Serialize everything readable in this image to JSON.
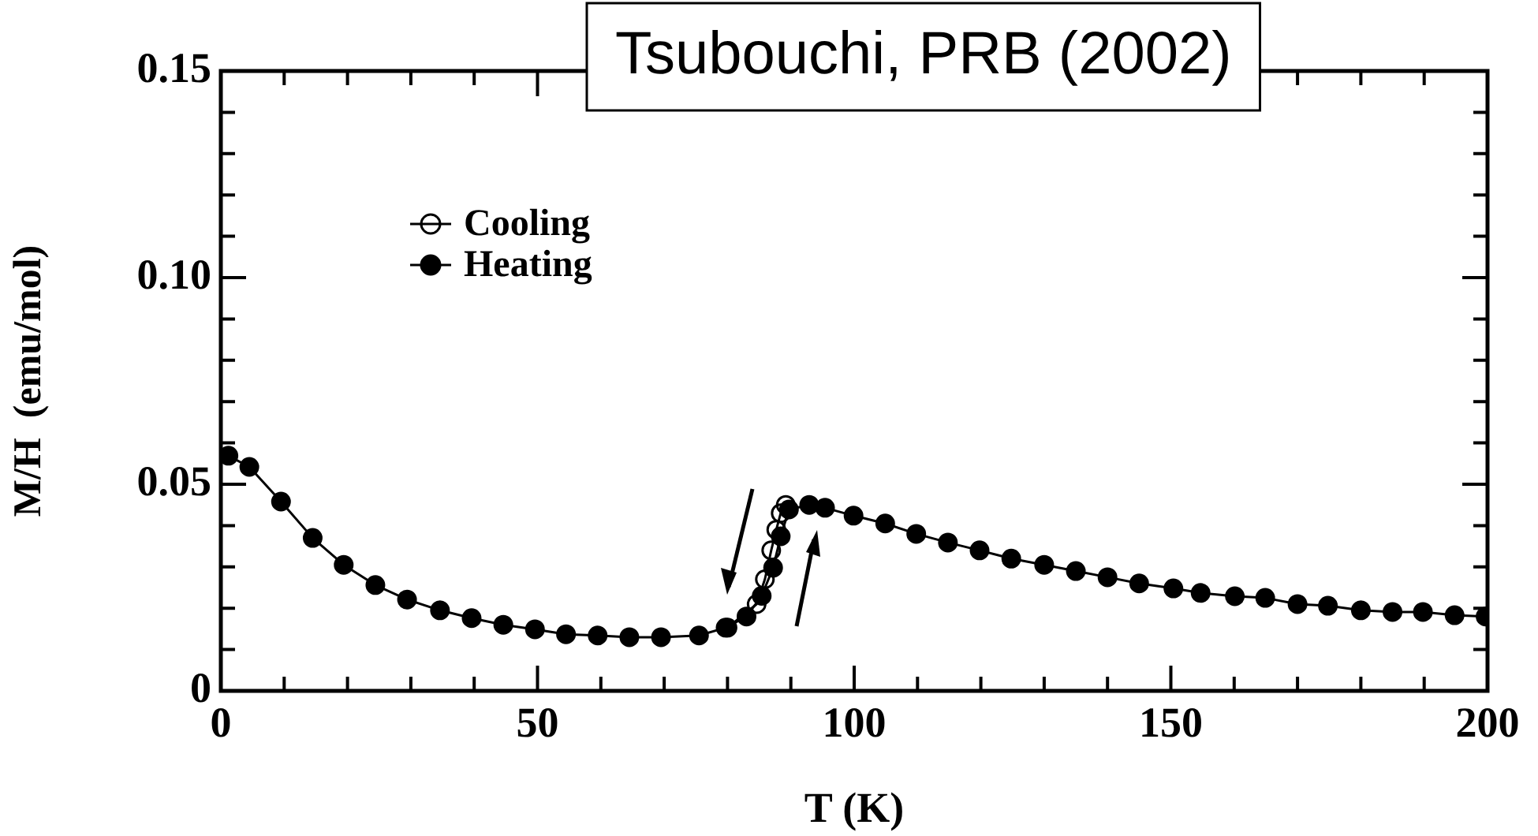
{
  "chart_data": {
    "type": "line",
    "xlabel": "T (K)",
    "ylabel": "M/H  (emu/mol)",
    "annotations": [
      "Tsubouchi, PRB (2002)"
    ],
    "xlim": [
      0,
      200
    ],
    "xticks": [
      0,
      50,
      100,
      150,
      200
    ],
    "ylim": [
      0,
      0.15
    ],
    "yticks": [
      {
        "value": 0,
        "label": "0"
      },
      0.05,
      {
        "value": 0.1,
        "label": "0.10"
      },
      0.15
    ],
    "legend": "top left",
    "marker": "circle",
    "line_style": "solid",
    "grid": false,
    "series": [
      {
        "name": "Cooling",
        "color": "#000000",
        "x": [
          80,
          84.6,
          85.9,
          86.9,
          87.7,
          88.4,
          89.2
        ],
        "values": [
          0.0153,
          0.021,
          0.027,
          0.034,
          0.039,
          0.043,
          0.045
        ]
      },
      {
        "name": "Heating",
        "color": "#000000",
        "x": [
          1.2,
          4.5,
          9.5,
          14.5,
          19.4,
          24.4,
          29.4,
          34.6,
          39.6,
          44.6,
          49.6,
          54.5,
          59.5,
          64.5,
          69.5,
          75.5,
          79.7,
          83,
          85.4,
          87.2,
          88.4,
          89.7,
          92.9,
          95.4,
          99.9,
          104.9,
          109.8,
          114.8,
          119.8,
          124.8,
          130,
          135,
          140,
          145,
          150.4,
          154.7,
          160.1,
          164.9,
          170,
          174.8,
          180,
          185,
          189.8,
          194.8,
          199.7
        ],
        "values": [
          0.0569,
          0.0542,
          0.0458,
          0.037,
          0.0305,
          0.0256,
          0.0221,
          0.0195,
          0.0176,
          0.016,
          0.0149,
          0.0137,
          0.0134,
          0.013,
          0.013,
          0.0134,
          0.0153,
          0.018,
          0.023,
          0.0298,
          0.0374,
          0.0439,
          0.045,
          0.0443,
          0.0424,
          0.0405,
          0.038,
          0.0359,
          0.034,
          0.032,
          0.0305,
          0.029,
          0.0275,
          0.026,
          0.0248,
          0.0237,
          0.0229,
          0.0225,
          0.021,
          0.0206,
          0.0195,
          0.0191,
          0.0191,
          0.0183,
          0.018
        ]
      }
    ]
  }
}
